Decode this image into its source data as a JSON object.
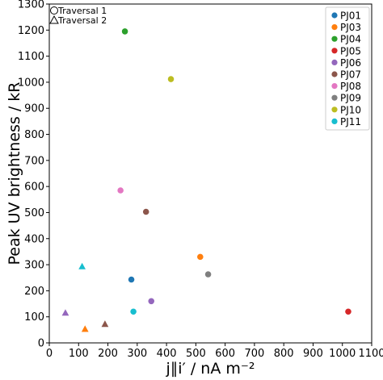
{
  "chart_data": {
    "type": "scatter",
    "xlabel": "j∥i′ / nA m⁻²",
    "ylabel": "Peak UV brightness / kR",
    "xlim": [
      0,
      1100
    ],
    "ylim": [
      0,
      1300
    ],
    "xticks": [
      0,
      100,
      200,
      300,
      400,
      500,
      600,
      700,
      800,
      900,
      1000,
      1100
    ],
    "yticks": [
      0,
      100,
      200,
      300,
      400,
      500,
      600,
      700,
      800,
      900,
      1000,
      1100,
      1200,
      1300
    ],
    "grid": false,
    "legend_position": "top-right",
    "marker_legend_position": "top-left",
    "marker_legend": [
      {
        "shape": "circle",
        "label": "Traversal 1"
      },
      {
        "shape": "triangle",
        "label": "Traversal 2"
      }
    ],
    "series": [
      {
        "name": "PJ01",
        "color": "#1f77b4",
        "points": [
          {
            "x": 280,
            "y": 243,
            "marker": "circle"
          }
        ]
      },
      {
        "name": "PJ03",
        "color": "#ff7f0e",
        "points": [
          {
            "x": 515,
            "y": 330,
            "marker": "circle"
          },
          {
            "x": 122,
            "y": 53,
            "marker": "triangle"
          }
        ]
      },
      {
        "name": "PJ04",
        "color": "#2ca02c",
        "points": [
          {
            "x": 258,
            "y": 1195,
            "marker": "circle"
          }
        ]
      },
      {
        "name": "PJ05",
        "color": "#d62728",
        "points": [
          {
            "x": 1020,
            "y": 120,
            "marker": "circle"
          }
        ]
      },
      {
        "name": "PJ06",
        "color": "#9467bd",
        "points": [
          {
            "x": 348,
            "y": 160,
            "marker": "circle"
          },
          {
            "x": 55,
            "y": 115,
            "marker": "triangle"
          }
        ]
      },
      {
        "name": "PJ07",
        "color": "#8c564b",
        "points": [
          {
            "x": 330,
            "y": 503,
            "marker": "circle"
          },
          {
            "x": 190,
            "y": 72,
            "marker": "triangle"
          }
        ]
      },
      {
        "name": "PJ08",
        "color": "#e377c2",
        "points": [
          {
            "x": 243,
            "y": 585,
            "marker": "circle"
          }
        ]
      },
      {
        "name": "PJ09",
        "color": "#7f7f7f",
        "points": [
          {
            "x": 542,
            "y": 263,
            "marker": "circle"
          }
        ]
      },
      {
        "name": "PJ10",
        "color": "#bcbd22",
        "points": [
          {
            "x": 415,
            "y": 1012,
            "marker": "circle"
          }
        ]
      },
      {
        "name": "PJ11",
        "color": "#17becf",
        "points": [
          {
            "x": 287,
            "y": 120,
            "marker": "circle"
          },
          {
            "x": 112,
            "y": 293,
            "marker": "triangle"
          }
        ]
      }
    ]
  }
}
